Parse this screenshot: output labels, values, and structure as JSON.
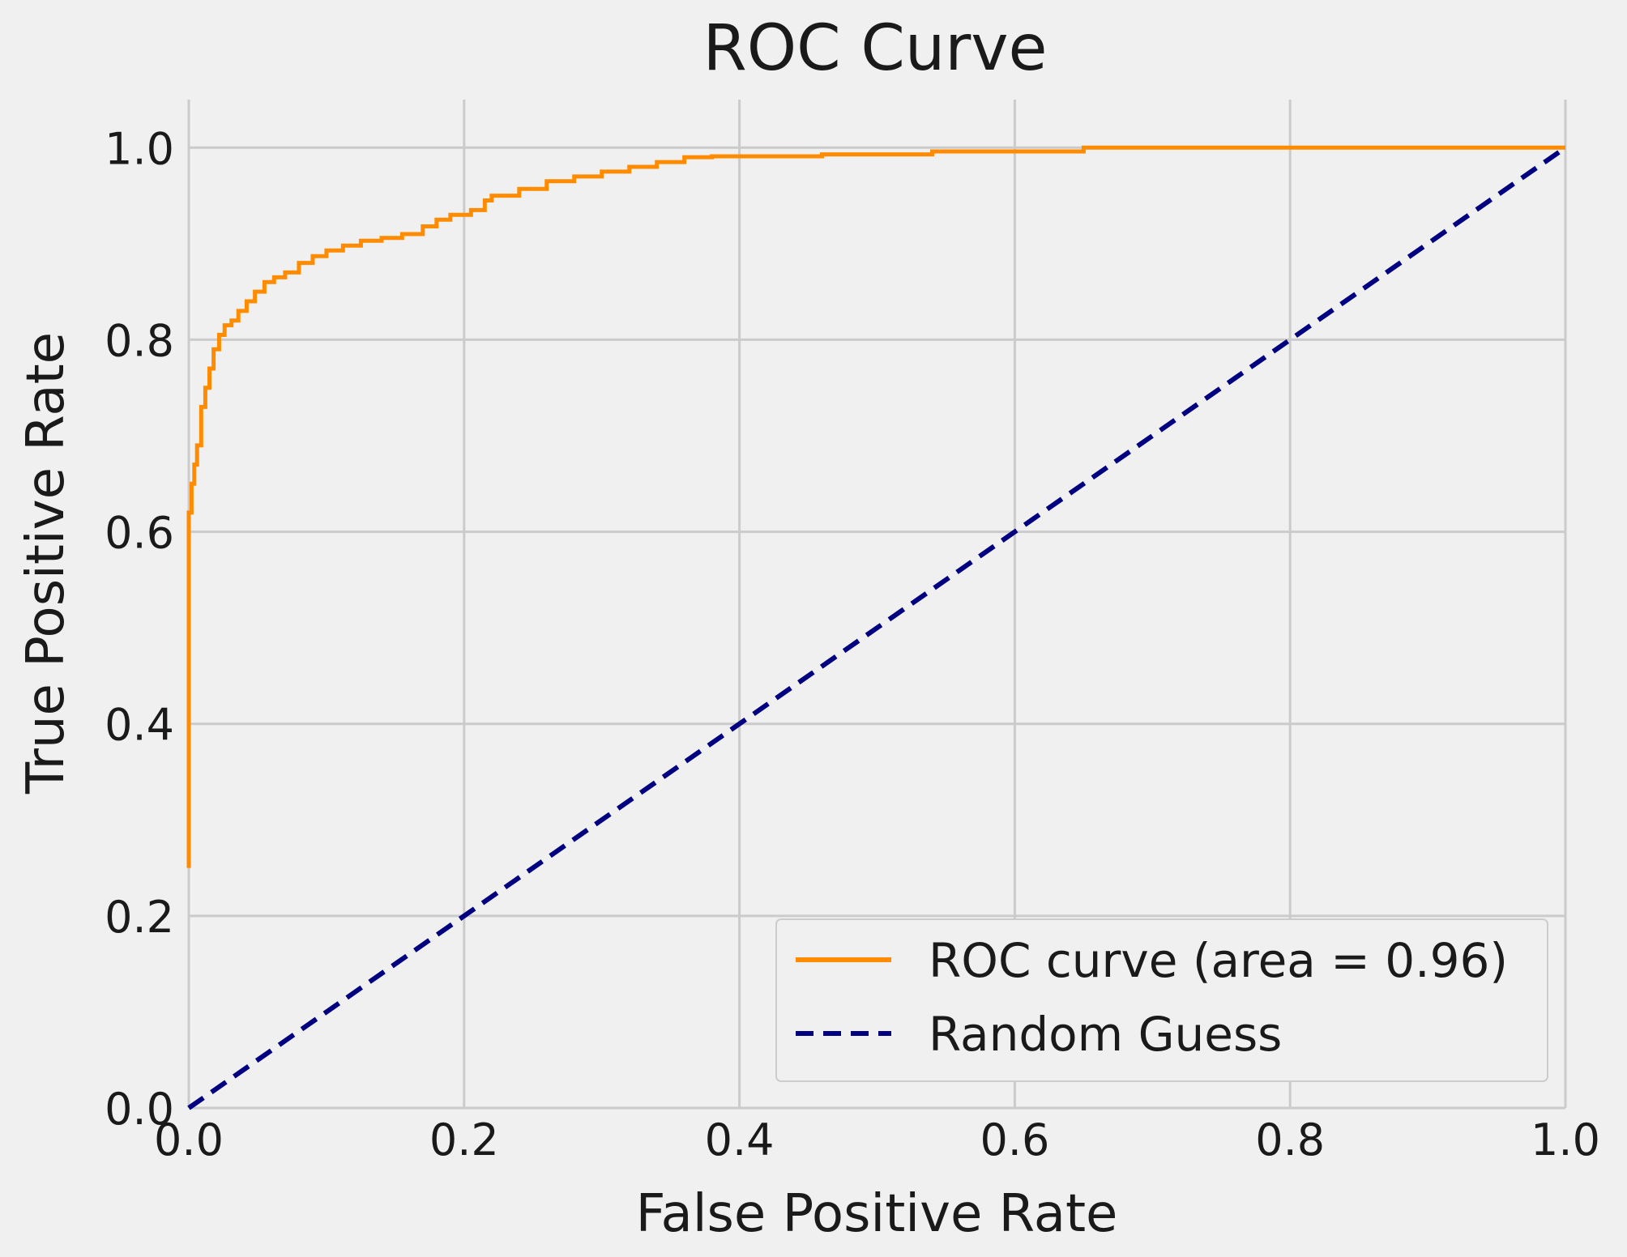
{
  "chart_data": {
    "type": "line",
    "title": "ROC Curve",
    "xlabel": "False Positive Rate",
    "ylabel": "True Positive Rate",
    "xlim": [
      0.0,
      1.0
    ],
    "ylim": [
      0.0,
      1.05
    ],
    "xticks": [
      "0.0",
      "0.2",
      "0.4",
      "0.6",
      "0.8",
      "1.0"
    ],
    "yticks": [
      "0.0",
      "0.2",
      "0.4",
      "0.6",
      "0.8",
      "1.0"
    ],
    "grid": true,
    "legend_position": "lower-right",
    "colors": {
      "background": "#f0f0f0",
      "grid": "#cbcbcb",
      "roc": "#ff8c00",
      "random": "#000080"
    },
    "series": [
      {
        "name": "ROC curve (area = 0.96)",
        "style": "solid",
        "x": [
          0.0,
          0.0,
          0.002,
          0.002,
          0.004,
          0.004,
          0.006,
          0.006,
          0.009,
          0.009,
          0.012,
          0.012,
          0.015,
          0.015,
          0.018,
          0.018,
          0.022,
          0.022,
          0.026,
          0.026,
          0.031,
          0.031,
          0.036,
          0.036,
          0.042,
          0.042,
          0.048,
          0.048,
          0.055,
          0.055,
          0.062,
          0.062,
          0.07,
          0.07,
          0.08,
          0.08,
          0.09,
          0.09,
          0.1,
          0.1,
          0.112,
          0.112,
          0.125,
          0.125,
          0.14,
          0.14,
          0.155,
          0.155,
          0.17,
          0.17,
          0.18,
          0.18,
          0.19,
          0.19,
          0.205,
          0.205,
          0.215,
          0.215,
          0.22,
          0.22,
          0.24,
          0.24,
          0.26,
          0.26,
          0.28,
          0.28,
          0.3,
          0.3,
          0.32,
          0.32,
          0.34,
          0.34,
          0.36,
          0.36,
          0.38,
          0.38,
          0.46,
          0.46,
          0.54,
          0.54,
          0.65,
          0.65,
          1.0
        ],
        "y": [
          0.25,
          0.62,
          0.62,
          0.65,
          0.65,
          0.67,
          0.67,
          0.69,
          0.69,
          0.73,
          0.73,
          0.75,
          0.75,
          0.77,
          0.77,
          0.79,
          0.79,
          0.805,
          0.805,
          0.815,
          0.815,
          0.82,
          0.82,
          0.83,
          0.83,
          0.84,
          0.84,
          0.85,
          0.85,
          0.86,
          0.86,
          0.865,
          0.865,
          0.87,
          0.87,
          0.88,
          0.88,
          0.887,
          0.887,
          0.893,
          0.893,
          0.898,
          0.898,
          0.903,
          0.903,
          0.906,
          0.906,
          0.91,
          0.91,
          0.918,
          0.918,
          0.925,
          0.925,
          0.93,
          0.93,
          0.935,
          0.935,
          0.945,
          0.945,
          0.95,
          0.95,
          0.957,
          0.957,
          0.965,
          0.965,
          0.97,
          0.97,
          0.975,
          0.975,
          0.98,
          0.98,
          0.985,
          0.985,
          0.99,
          0.99,
          0.991,
          0.991,
          0.993,
          0.993,
          0.996,
          0.996,
          1.0,
          1.0
        ]
      },
      {
        "name": "Random Guess",
        "style": "dashed",
        "x": [
          0.0,
          1.0
        ],
        "y": [
          0.0,
          1.0
        ]
      }
    ]
  }
}
